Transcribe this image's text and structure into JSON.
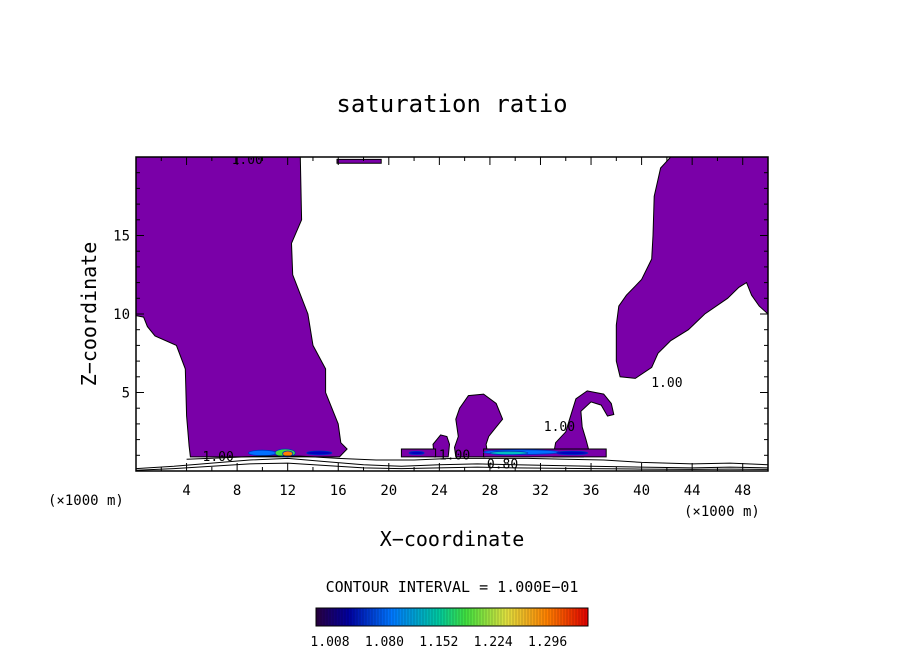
{
  "chart_data": {
    "type": "contour",
    "title": "saturation ratio",
    "xlabel": "X−coordinate",
    "ylabel": "Z−coordinate",
    "x_unit_label": "(×1000 m)",
    "z_unit_label": "(×1000 m)",
    "xlim": [
      0,
      50
    ],
    "ylim": [
      0,
      20
    ],
    "x_ticks": [
      4,
      8,
      12,
      16,
      20,
      24,
      28,
      32,
      36,
      40,
      44,
      48
    ],
    "x_tick_labels": [
      "4",
      "8",
      "12",
      "16",
      "20",
      "24",
      "28",
      "32",
      "36",
      "40",
      "44",
      "48"
    ],
    "y_ticks": [
      5,
      10,
      15
    ],
    "y_tick_labels": [
      "5",
      "10",
      "15"
    ],
    "contour_interval_text": "CONTOUR INTERVAL = 1.000E−01",
    "fill_color": "#7a00a8",
    "colorbar": {
      "tick_values": [
        "1.008",
        "1.080",
        "1.152",
        "1.224",
        "1.296"
      ],
      "min": 1.008,
      "max": 1.368
    },
    "contour_labels": [
      {
        "text": "1.00",
        "x": 8.8,
        "z": 19.8
      },
      {
        "text": "1.00",
        "x": 42.0,
        "z": 5.6
      },
      {
        "text": "1.00",
        "x": 6.5,
        "z": 0.9
      },
      {
        "text": "1.00",
        "x": 25.2,
        "z": 1.0
      },
      {
        "text": "0.80",
        "x": 29.0,
        "z": 0.4
      },
      {
        "text": "1.00",
        "x": 33.5,
        "z": 2.8
      }
    ],
    "filled_regions": [
      {
        "name": "left-plume",
        "points": [
          [
            0,
            20
          ],
          [
            13,
            20
          ],
          [
            13.1,
            16
          ],
          [
            12.3,
            14.5
          ],
          [
            12.4,
            12.5
          ],
          [
            13.6,
            10
          ],
          [
            14,
            8
          ],
          [
            15,
            6.5
          ],
          [
            15,
            5
          ],
          [
            16,
            3
          ],
          [
            16.2,
            1.8
          ],
          [
            16.7,
            1.4
          ],
          [
            16.1,
            0.9
          ],
          [
            4.3,
            0.9
          ],
          [
            4.2,
            1.6
          ],
          [
            4,
            3.5
          ],
          [
            3.9,
            6.5
          ],
          [
            3.2,
            8
          ],
          [
            1.5,
            8.6
          ],
          [
            0.9,
            9.2
          ],
          [
            0.6,
            9.8
          ],
          [
            0,
            9.9
          ]
        ]
      },
      {
        "name": "top-sliver",
        "points": [
          [
            15.9,
            19.6
          ],
          [
            19.4,
            19.6
          ],
          [
            19.4,
            19.85
          ],
          [
            15.9,
            19.85
          ]
        ]
      },
      {
        "name": "right-plume",
        "points": [
          [
            50,
            20
          ],
          [
            42.3,
            20
          ],
          [
            41.5,
            19.3
          ],
          [
            41,
            17.5
          ],
          [
            40.9,
            15
          ],
          [
            40.8,
            13.5
          ],
          [
            40,
            12.2
          ],
          [
            38.8,
            11.2
          ],
          [
            38.2,
            10.5
          ],
          [
            38,
            9.3
          ],
          [
            38,
            7
          ],
          [
            38.3,
            6
          ],
          [
            39.5,
            5.9
          ],
          [
            40.8,
            6.6
          ],
          [
            41.3,
            7.5
          ],
          [
            42.3,
            8.3
          ],
          [
            43.7,
            9
          ],
          [
            45,
            10
          ],
          [
            46.8,
            11
          ],
          [
            47.7,
            11.7
          ],
          [
            48.3,
            12
          ],
          [
            48.7,
            11.2
          ],
          [
            49.3,
            10.5
          ],
          [
            50,
            10
          ]
        ]
      },
      {
        "name": "center-dome",
        "points": [
          [
            25.3,
            0.9
          ],
          [
            25.2,
            1.5
          ],
          [
            25.5,
            2.2
          ],
          [
            25.3,
            3.3
          ],
          [
            25.6,
            4
          ],
          [
            26.3,
            4.8
          ],
          [
            27.5,
            4.9
          ],
          [
            28.5,
            4.3
          ],
          [
            29,
            3.3
          ],
          [
            28.4,
            2.7
          ],
          [
            27.9,
            2.2
          ],
          [
            27.7,
            1.7
          ],
          [
            27.8,
            1.2
          ],
          [
            27.6,
            0.9
          ]
        ]
      },
      {
        "name": "center-small-dome",
        "points": [
          [
            23.6,
            0.9
          ],
          [
            23.5,
            1.7
          ],
          [
            24.1,
            2.3
          ],
          [
            24.6,
            2.2
          ],
          [
            24.8,
            1.7
          ],
          [
            24.7,
            0.9
          ]
        ]
      },
      {
        "name": "hook",
        "points": [
          [
            33,
            0.9
          ],
          [
            33.2,
            1.8
          ],
          [
            34,
            2.5
          ],
          [
            34.3,
            3.3
          ],
          [
            34.8,
            4.6
          ],
          [
            35.7,
            5.1
          ],
          [
            37,
            4.9
          ],
          [
            37.6,
            4.3
          ],
          [
            37.8,
            3.6
          ],
          [
            37.3,
            3.5
          ],
          [
            36.8,
            4.2
          ],
          [
            36,
            4.4
          ],
          [
            35.2,
            3.8
          ],
          [
            35.3,
            2.8
          ],
          [
            35.6,
            2
          ],
          [
            35.8,
            1.4
          ],
          [
            35.4,
            0.9
          ]
        ]
      },
      {
        "name": "ground-band-a",
        "points": [
          [
            21,
            0.9
          ],
          [
            21,
            1.4
          ],
          [
            23.7,
            1.4
          ],
          [
            23.7,
            0.9
          ]
        ]
      },
      {
        "name": "ground-band-b",
        "points": [
          [
            27.5,
            0.9
          ],
          [
            27.5,
            1.4
          ],
          [
            37.2,
            1.4
          ],
          [
            37.2,
            0.9
          ]
        ]
      }
    ],
    "ground_lines": [
      {
        "name": "contour-0.80",
        "points": [
          [
            0,
            0.15
          ],
          [
            3,
            0.3
          ],
          [
            6,
            0.5
          ],
          [
            9,
            0.7
          ],
          [
            12,
            0.8
          ],
          [
            15,
            0.6
          ],
          [
            18,
            0.4
          ],
          [
            21,
            0.3
          ],
          [
            24,
            0.4
          ],
          [
            27,
            0.45
          ],
          [
            30,
            0.4
          ],
          [
            33,
            0.35
          ],
          [
            36,
            0.3
          ],
          [
            40,
            0.25
          ],
          [
            44,
            0.2
          ],
          [
            47,
            0.25
          ],
          [
            50,
            0.2
          ]
        ]
      },
      {
        "name": "contour-0.60",
        "points": [
          [
            0,
            0.05
          ],
          [
            3,
            0.15
          ],
          [
            6,
            0.3
          ],
          [
            9,
            0.45
          ],
          [
            12,
            0.5
          ],
          [
            15,
            0.35
          ],
          [
            18,
            0.2
          ],
          [
            21,
            0.15
          ],
          [
            24,
            0.2
          ],
          [
            27,
            0.25
          ],
          [
            30,
            0.2
          ],
          [
            33,
            0.18
          ],
          [
            36,
            0.15
          ],
          [
            40,
            0.12
          ],
          [
            44,
            0.1
          ],
          [
            47,
            0.12
          ],
          [
            50,
            0.1
          ]
        ]
      },
      {
        "name": "contour-0.90",
        "points": [
          [
            4,
            0.75
          ],
          [
            7,
            0.85
          ],
          [
            10,
            0.95
          ],
          [
            13,
            0.95
          ],
          [
            16,
            0.8
          ],
          [
            19,
            0.7
          ],
          [
            22,
            0.7
          ],
          [
            25,
            0.8
          ],
          [
            28,
            0.8
          ],
          [
            31,
            0.8
          ],
          [
            34,
            0.75
          ],
          [
            37,
            0.7
          ],
          [
            40,
            0.55
          ],
          [
            44,
            0.45
          ],
          [
            47,
            0.5
          ],
          [
            50,
            0.4
          ]
        ]
      }
    ],
    "hotspots": [
      {
        "x": 10.0,
        "z": 1.15,
        "w": 2.2,
        "h": 0.35,
        "level": 0.2
      },
      {
        "x": 11.8,
        "z": 1.15,
        "w": 1.6,
        "h": 0.5,
        "level": 0.45
      },
      {
        "x": 12.0,
        "z": 1.1,
        "w": 0.8,
        "h": 0.35,
        "level": 0.8
      },
      {
        "x": 14.5,
        "z": 1.15,
        "w": 2.0,
        "h": 0.25,
        "level": 0.05
      },
      {
        "x": 30.5,
        "z": 1.2,
        "w": 6.0,
        "h": 0.3,
        "level": 0.12
      },
      {
        "x": 29.5,
        "z": 1.15,
        "w": 3.0,
        "h": 0.22,
        "level": 0.3
      },
      {
        "x": 34.5,
        "z": 1.15,
        "w": 2.5,
        "h": 0.22,
        "level": 0.08
      },
      {
        "x": 22.2,
        "z": 1.15,
        "w": 1.2,
        "h": 0.2,
        "level": 0.05
      }
    ]
  }
}
